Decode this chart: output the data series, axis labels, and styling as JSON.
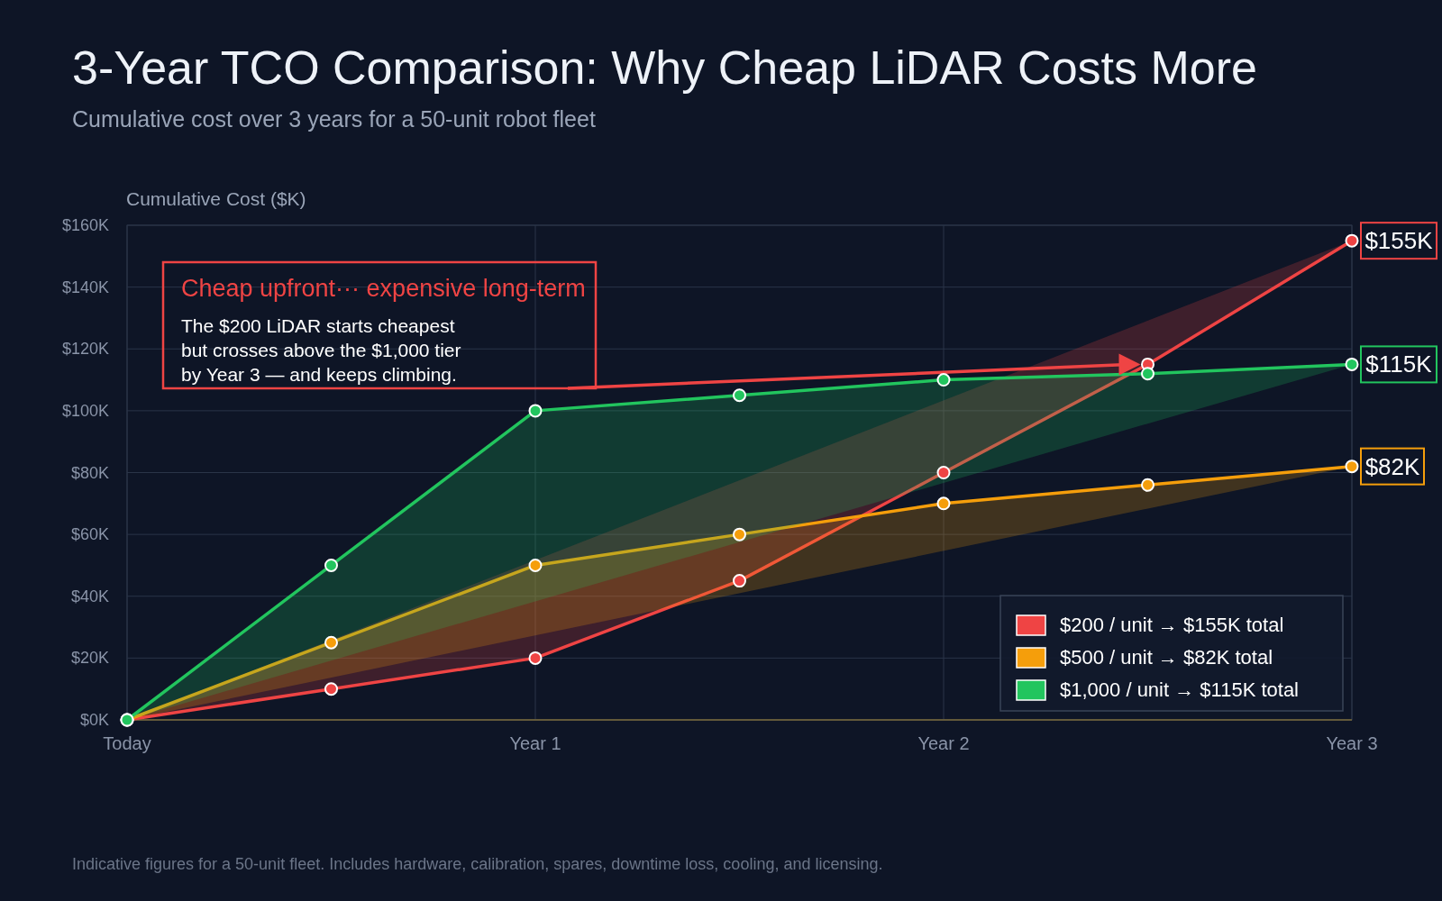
{
  "chart_data": {
    "type": "line",
    "title": "3-Year TCO Comparison: Why Cheap LiDAR Costs More",
    "subtitle": "Cumulative cost over 3 years for a 50-unit robot fleet",
    "ylabel": "Cumulative Cost ($K)",
    "categories": [
      "Today",
      null,
      "Year 1",
      null,
      "Year 2",
      null,
      "Year 3"
    ],
    "ylim": [
      0,
      160
    ],
    "yticks": [
      {
        "value": 0,
        "label": "$0K"
      },
      {
        "value": 20,
        "label": "$20K"
      },
      {
        "value": 40,
        "label": "$40K"
      },
      {
        "value": 60,
        "label": "$60K"
      },
      {
        "value": 80,
        "label": "$80K"
      },
      {
        "value": 100,
        "label": "$100K"
      },
      {
        "value": 120,
        "label": "$120K"
      },
      {
        "value": 140,
        "label": "$140K"
      },
      {
        "value": 160,
        "label": "$160K"
      }
    ],
    "series": [
      {
        "name": "$200 / unit → $155K total",
        "color": "#ef4444",
        "values": [
          0,
          10,
          20,
          45,
          80,
          115,
          155
        ],
        "value_labels": [
          null,
          null,
          null,
          null,
          null,
          null,
          "$155K"
        ]
      },
      {
        "name": "$500 / unit → $82K total",
        "color": "#f59e0b",
        "values": [
          0,
          25,
          50,
          60,
          70,
          76,
          82
        ],
        "value_labels": [
          null,
          null,
          null,
          null,
          null,
          null,
          "$82K"
        ]
      },
      {
        "name": "$1,000 / unit → $115K total",
        "color": "#22c55e",
        "values": [
          0,
          50,
          100,
          105,
          110,
          112,
          115
        ],
        "value_labels": [
          null,
          null,
          null,
          null,
          null,
          null,
          "$115K"
        ]
      }
    ],
    "annotations": [
      "Cheap upfront··· expensive long-term",
      "The $200 LiDAR starts cheapest\nbut crosses above the $1,000 tier\nby Year 3 — and keeps climbing.",
      "Indicative figures for a 50-unit fleet. Includes hardware, calibration, spares, downtime loss, cooling, and licensing."
    ],
    "grid": true,
    "legend": "bottom right",
    "marker": "circle",
    "line_style": "solid"
  }
}
